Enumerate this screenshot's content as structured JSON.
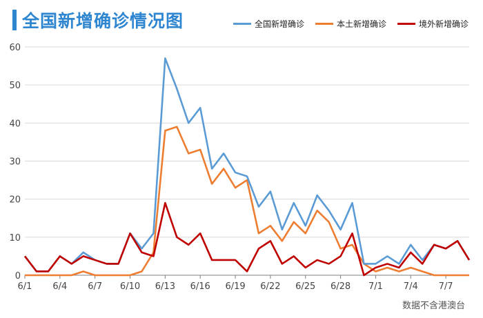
{
  "title": "全国新增确诊情况图",
  "note": "数据不含港澳台",
  "chart_data": {
    "type": "line",
    "categories": [
      "6/1",
      "6/2",
      "6/3",
      "6/4",
      "6/5",
      "6/6",
      "6/7",
      "6/8",
      "6/9",
      "6/10",
      "6/11",
      "6/12",
      "6/13",
      "6/14",
      "6/15",
      "6/16",
      "6/17",
      "6/18",
      "6/19",
      "6/20",
      "6/21",
      "6/22",
      "6/23",
      "6/24",
      "6/25",
      "6/26",
      "6/27",
      "6/28",
      "6/29",
      "6/30",
      "7/1",
      "7/2",
      "7/3",
      "7/4",
      "7/5",
      "7/6",
      "7/7",
      "7/8",
      "7/9"
    ],
    "tick_labels": [
      "6/1",
      "6/4",
      "6/7",
      "6/10",
      "6/13",
      "6/16",
      "6/19",
      "6/22",
      "6/25",
      "6/28",
      "7/1",
      "7/4",
      "7/7"
    ],
    "ylim": [
      0,
      60
    ],
    "yticks": [
      0,
      10,
      20,
      30,
      40,
      50,
      60
    ],
    "grid": true,
    "legend_position": "top-right",
    "series": [
      {
        "name": "全国新增确诊",
        "color": "#5b9bd5",
        "values": [
          5,
          1,
          1,
          5,
          3,
          6,
          4,
          3,
          3,
          11,
          7,
          11,
          57,
          49,
          40,
          44,
          28,
          32,
          27,
          26,
          18,
          22,
          12,
          19,
          13,
          21,
          17,
          12,
          19,
          3,
          3,
          5,
          3,
          8,
          4,
          8,
          7,
          9,
          4
        ]
      },
      {
        "name": "本土新增确诊",
        "color": "#ed7d31",
        "values": [
          0,
          0,
          0,
          0,
          0,
          1,
          0,
          0,
          0,
          0,
          1,
          6,
          38,
          39,
          32,
          33,
          24,
          28,
          23,
          25,
          11,
          13,
          9,
          14,
          11,
          17,
          14,
          7,
          8,
          3,
          1,
          2,
          1,
          2,
          1,
          0,
          0,
          0,
          0
        ]
      },
      {
        "name": "境外新增确诊",
        "color": "#c00000",
        "values": [
          5,
          1,
          1,
          5,
          3,
          5,
          4,
          3,
          3,
          11,
          6,
          5,
          19,
          10,
          8,
          11,
          4,
          4,
          4,
          1,
          7,
          9,
          3,
          5,
          2,
          4,
          3,
          5,
          11,
          0,
          2,
          3,
          2,
          6,
          3,
          8,
          7,
          9,
          4
        ]
      }
    ]
  }
}
